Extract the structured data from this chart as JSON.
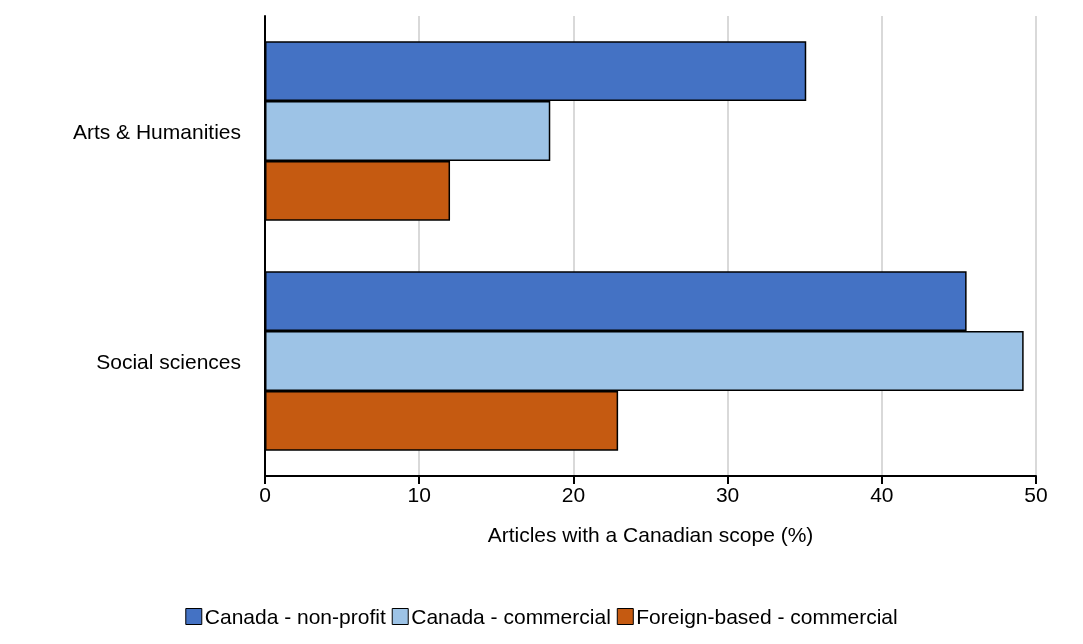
{
  "chart_data": {
    "type": "bar",
    "orientation": "horizontal",
    "xlabel": "Articles with a Canadian scope (%)",
    "categories": [
      "Arts & Humanities",
      "Social sciences"
    ],
    "series": [
      {
        "name": "Canada - non-profit",
        "color": "#4472c4",
        "values": [
          35.1,
          45.5
        ]
      },
      {
        "name": "Canada - commercial",
        "color": "#9dc3e6",
        "values": [
          18.5,
          49.2
        ]
      },
      {
        "name": "Foreign-based - commercial",
        "color": "#c55a11",
        "values": [
          12.0,
          22.9
        ]
      }
    ],
    "xlim": [
      0,
      50
    ],
    "xticks": [
      0,
      10,
      20,
      30,
      40,
      50
    ],
    "grid": "x",
    "legend": "bottom"
  }
}
